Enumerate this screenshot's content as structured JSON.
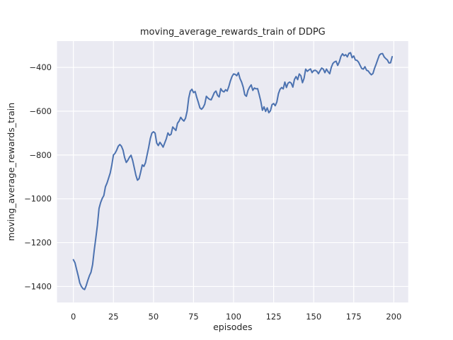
{
  "chart_data": {
    "type": "line",
    "title": "moving_average_rewards_train of DDPG",
    "xlabel": "episodes",
    "ylabel": "moving_average_rewards_train",
    "x_ticks": [
      0,
      25,
      50,
      75,
      100,
      125,
      150,
      175,
      200
    ],
    "y_ticks": [
      -400,
      -600,
      -800,
      -1000,
      -1200,
      -1400
    ],
    "xlim": [
      -10.2,
      209
    ],
    "ylim": [
      -1472,
      -280
    ],
    "grid": true,
    "legend_position": "none",
    "colors": {
      "line": "#4c72b0",
      "background": "#eaeaf2",
      "grid": "#ffffff",
      "text": "#262626",
      "figure": "#ffffff"
    },
    "series": [
      {
        "name": "moving_average_rewards_train",
        "x": [
          0,
          1,
          2,
          3,
          4,
          5,
          6,
          7,
          8,
          9,
          10,
          11,
          12,
          13,
          14,
          15,
          16,
          17,
          18,
          19,
          20,
          21,
          22,
          23,
          24,
          25,
          26,
          27,
          28,
          29,
          30,
          31,
          32,
          33,
          34,
          35,
          36,
          37,
          38,
          39,
          40,
          41,
          42,
          43,
          44,
          45,
          46,
          47,
          48,
          49,
          50,
          51,
          52,
          53,
          54,
          55,
          56,
          57,
          58,
          59,
          60,
          61,
          62,
          63,
          64,
          65,
          66,
          67,
          68,
          69,
          70,
          71,
          72,
          73,
          74,
          75,
          76,
          77,
          78,
          79,
          80,
          81,
          82,
          83,
          84,
          85,
          86,
          87,
          88,
          89,
          90,
          91,
          92,
          93,
          94,
          95,
          96,
          97,
          98,
          99,
          100,
          101,
          102,
          103,
          104,
          105,
          106,
          107,
          108,
          109,
          110,
          111,
          112,
          113,
          114,
          115,
          116,
          117,
          118,
          119,
          120,
          121,
          122,
          123,
          124,
          125,
          126,
          127,
          128,
          129,
          130,
          131,
          132,
          133,
          134,
          135,
          136,
          137,
          138,
          139,
          140,
          141,
          142,
          143,
          144,
          145,
          146,
          147,
          148,
          149,
          150,
          151,
          152,
          153,
          154,
          155,
          156,
          157,
          158,
          159,
          160,
          161,
          162,
          163,
          164,
          165,
          166,
          167,
          168,
          169,
          170,
          171,
          172,
          173,
          174,
          175,
          176,
          177,
          178,
          179,
          180,
          181,
          182,
          183,
          184,
          185,
          186,
          187,
          188,
          189,
          190,
          191,
          192,
          193,
          194,
          195,
          196,
          197,
          198,
          199
        ],
        "y": [
          -1278,
          -1292,
          -1322,
          -1351,
          -1384,
          -1400,
          -1410,
          -1414,
          -1396,
          -1372,
          -1351,
          -1335,
          -1300,
          -1235,
          -1179,
          -1120,
          -1044,
          -1017,
          -998,
          -985,
          -945,
          -928,
          -905,
          -882,
          -845,
          -800,
          -792,
          -778,
          -760,
          -752,
          -760,
          -778,
          -812,
          -834,
          -824,
          -810,
          -801,
          -825,
          -858,
          -892,
          -915,
          -908,
          -878,
          -845,
          -852,
          -835,
          -800,
          -765,
          -725,
          -700,
          -694,
          -700,
          -745,
          -757,
          -742,
          -752,
          -764,
          -745,
          -726,
          -699,
          -710,
          -705,
          -672,
          -680,
          -688,
          -655,
          -645,
          -628,
          -638,
          -645,
          -632,
          -600,
          -540,
          -508,
          -500,
          -515,
          -510,
          -537,
          -560,
          -585,
          -591,
          -583,
          -568,
          -532,
          -540,
          -546,
          -548,
          -532,
          -515,
          -508,
          -528,
          -535,
          -497,
          -508,
          -512,
          -502,
          -508,
          -488,
          -462,
          -442,
          -430,
          -432,
          -438,
          -424,
          -451,
          -467,
          -490,
          -525,
          -532,
          -505,
          -490,
          -480,
          -505,
          -494,
          -498,
          -497,
          -525,
          -555,
          -596,
          -580,
          -601,
          -585,
          -607,
          -598,
          -570,
          -565,
          -575,
          -558,
          -520,
          -500,
          -492,
          -498,
          -467,
          -492,
          -472,
          -467,
          -472,
          -490,
          -455,
          -442,
          -456,
          -430,
          -438,
          -470,
          -450,
          -408,
          -418,
          -412,
          -407,
          -424,
          -415,
          -413,
          -418,
          -429,
          -415,
          -403,
          -408,
          -424,
          -408,
          -420,
          -429,
          -400,
          -382,
          -375,
          -372,
          -391,
          -375,
          -350,
          -338,
          -347,
          -342,
          -352,
          -336,
          -333,
          -356,
          -348,
          -366,
          -368,
          -376,
          -391,
          -405,
          -408,
          -397,
          -413,
          -416,
          -426,
          -434,
          -428,
          -404,
          -385,
          -364,
          -344,
          -338,
          -337,
          -352,
          -360,
          -366,
          -380,
          -379,
          -351
        ]
      }
    ]
  }
}
